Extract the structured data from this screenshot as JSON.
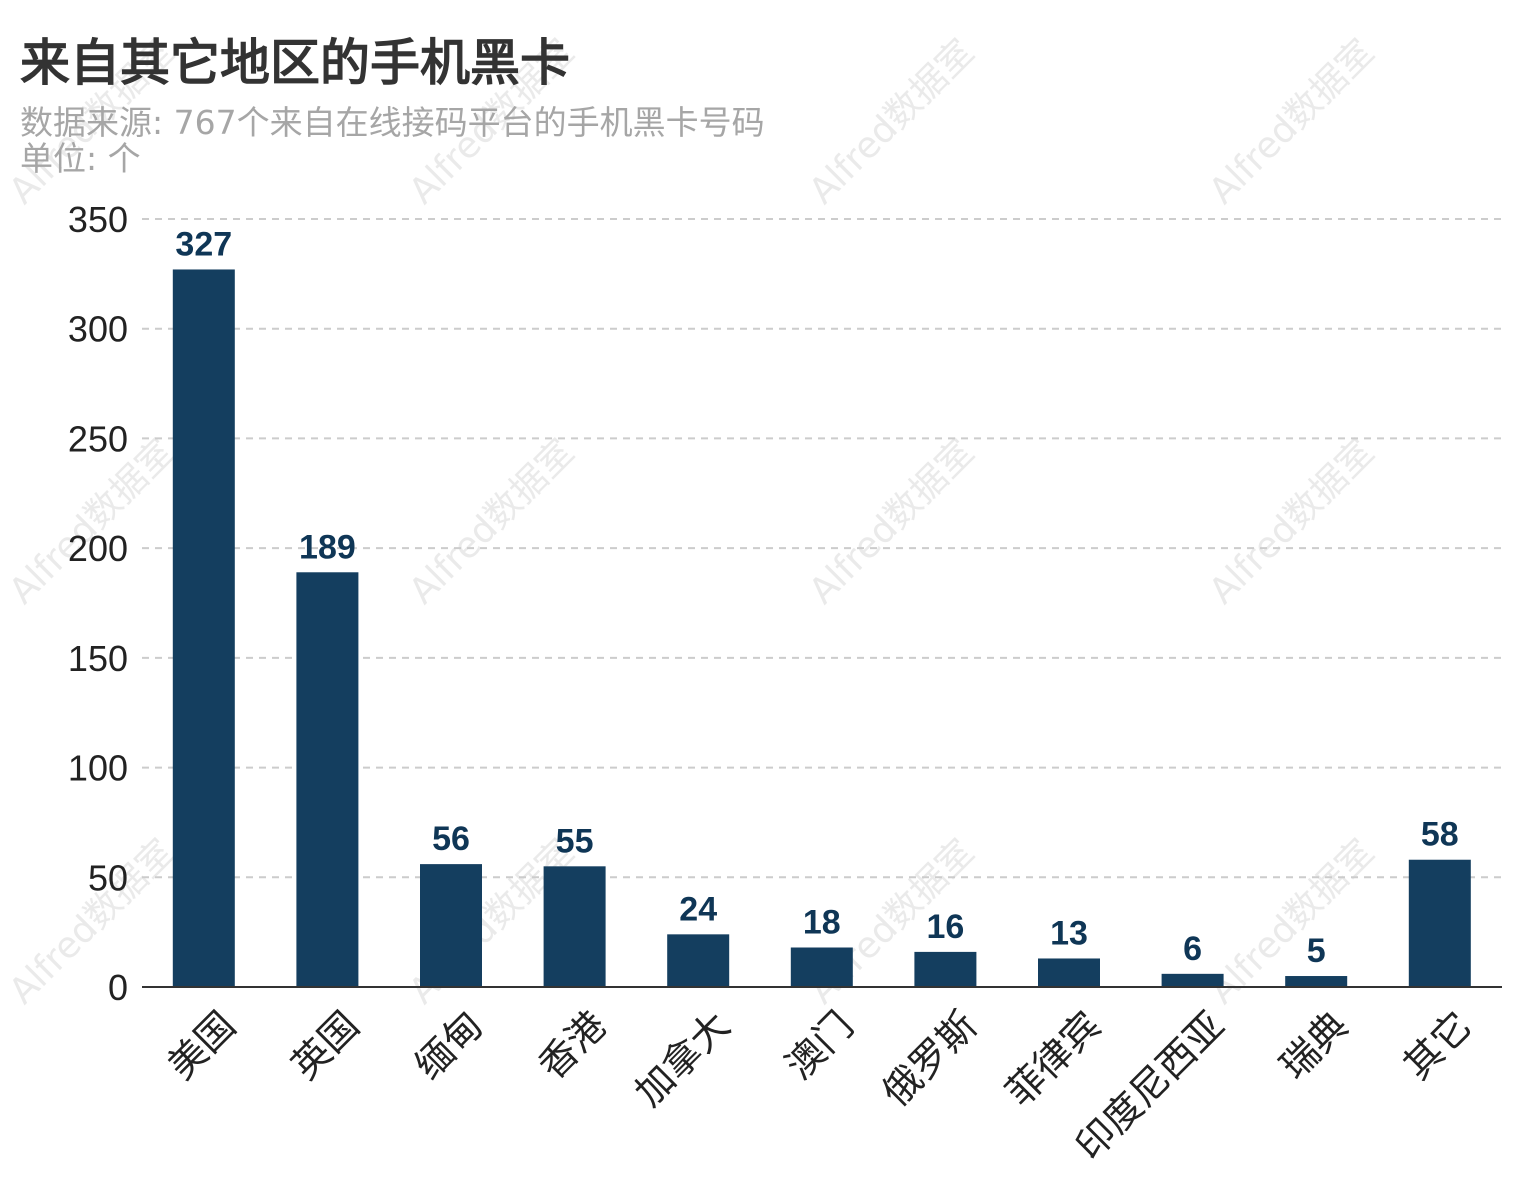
{
  "title": "来自其它地区的手机黑卡",
  "subtitle_source": "数据来源: 767个来自在线接码平台的手机黑卡号码",
  "subtitle_unit": "单位: 个",
  "watermark": "Alfred数据室",
  "colors": {
    "bar": "#143e5f",
    "label": "#0f3656",
    "grid": "#cccccc",
    "axis": "#333333"
  },
  "chart_data": {
    "type": "bar",
    "title": "来自其它地区的手机黑卡",
    "xlabel": "",
    "ylabel": "",
    "categories": [
      "美国",
      "英国",
      "缅甸",
      "香港",
      "加拿大",
      "澳门",
      "俄罗斯",
      "菲律宾",
      "印度尼西亚",
      "瑞典",
      "其它"
    ],
    "values": [
      327,
      189,
      56,
      55,
      24,
      18,
      16,
      13,
      6,
      5,
      58
    ],
    "ylim": [
      0,
      350
    ],
    "yticks": [
      0,
      50,
      100,
      150,
      200,
      250,
      300,
      350
    ],
    "grid": true,
    "data_labels": true
  }
}
